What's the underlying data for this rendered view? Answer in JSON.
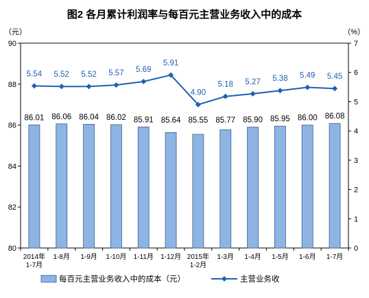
{
  "chart_data": {
    "type": "bar+line",
    "title": "图2  各月累计利润率与每百元主营业务收入中的成本",
    "left_axis_unit": "（元）",
    "right_axis_unit": "（%）",
    "left_ylim": [
      80,
      90
    ],
    "left_ticks": [
      "80",
      "82",
      "84",
      "86",
      "88",
      "90"
    ],
    "right_ylim": [
      0,
      7
    ],
    "right_ticks": [
      "0",
      "1",
      "2",
      "3",
      "4",
      "5",
      "6",
      "7"
    ],
    "categories": [
      [
        "2014年",
        "1-7月"
      ],
      [
        "1-8月"
      ],
      [
        "1-9月"
      ],
      [
        "1-10月"
      ],
      [
        "1-11月"
      ],
      [
        "1-12月"
      ],
      [
        "2015年",
        "1-2月"
      ],
      [
        "1-3月"
      ],
      [
        "1-4月"
      ],
      [
        "1-5月"
      ],
      [
        "1-6月"
      ],
      [
        "1-7月"
      ]
    ],
    "series": [
      {
        "name": "每百元主营业务收入中的成本（元）",
        "type": "bar",
        "axis": "left",
        "values": [
          86.01,
          86.06,
          86.04,
          86.02,
          85.91,
          85.64,
          85.55,
          85.77,
          85.9,
          85.95,
          86.0,
          86.08
        ],
        "labels": [
          "86.01",
          "86.06",
          "86.04",
          "86.02",
          "85.91",
          "85.64",
          "85.55",
          "85.77",
          "85.90",
          "85.95",
          "86.00",
          "86.08"
        ]
      },
      {
        "name": "主营业务收",
        "type": "line",
        "axis": "right",
        "values": [
          5.54,
          5.52,
          5.52,
          5.57,
          5.69,
          5.91,
          4.9,
          5.18,
          5.27,
          5.38,
          5.49,
          5.45
        ],
        "labels": [
          "5.54",
          "5.52",
          "5.52",
          "5.57",
          "5.69",
          "5.91",
          "4.90",
          "5.18",
          "5.27",
          "5.38",
          "5.49",
          "5.45"
        ]
      }
    ],
    "grid": false,
    "legend_position": "bottom",
    "colors": {
      "bar_fill": "#8eb4e3",
      "bar_stroke": "#365f91",
      "line": "#1f5fb4",
      "axis": "#000000"
    }
  }
}
